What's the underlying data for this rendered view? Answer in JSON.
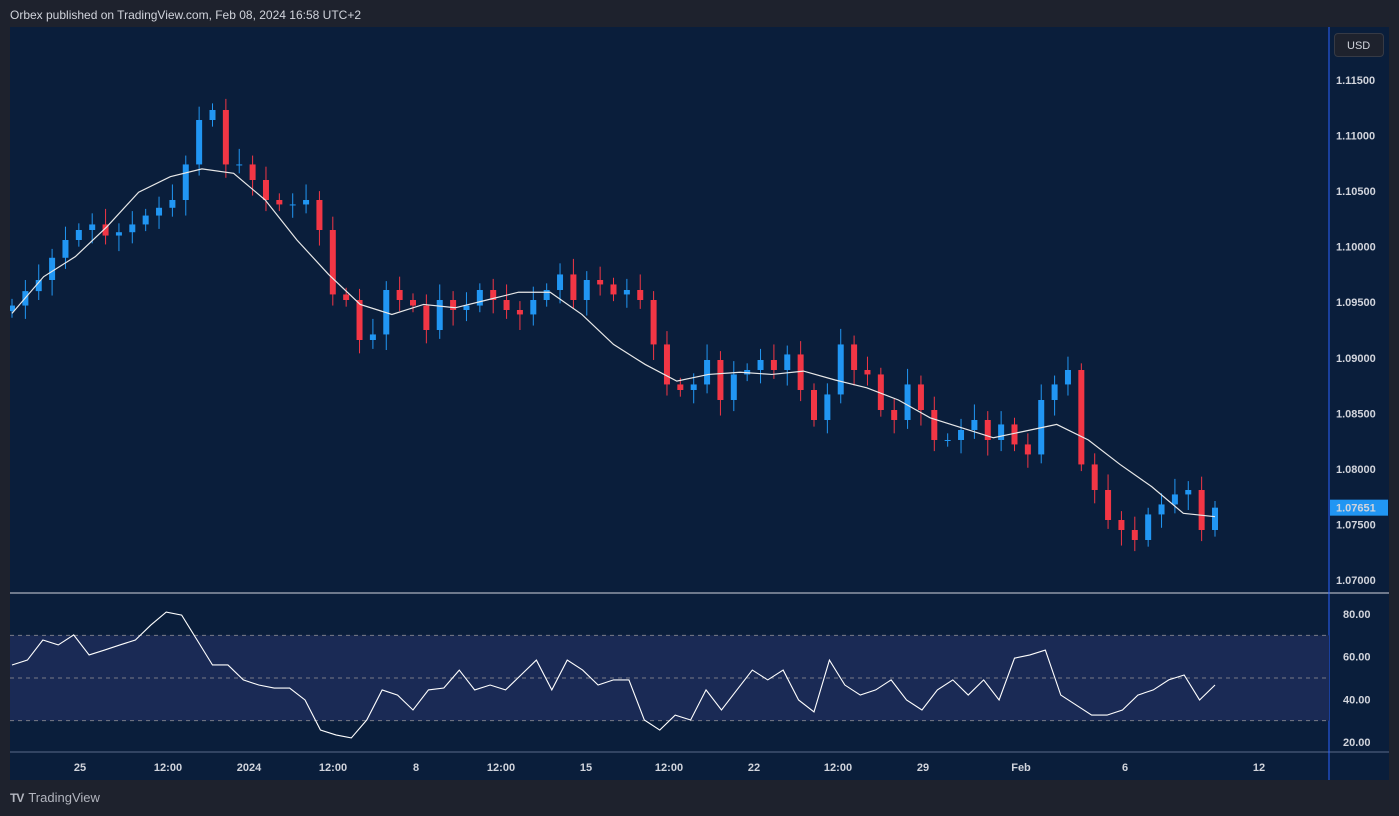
{
  "header": {
    "text": "Orbex published on TradingView.com, Feb 08, 2024 16:58 UTC+2"
  },
  "currency": "USD",
  "branding": {
    "logo_text": "TradingView"
  },
  "colors": {
    "up": "#2196f3",
    "down": "#f23645",
    "ma": "#e8e8e8",
    "rsi": "#ffffff",
    "background": "#0a1e3b",
    "rsi_band": "#1a2a55",
    "last_price": "#2196f3"
  },
  "chart_data": [
    {
      "type": "candlestick",
      "title": "",
      "yaxis": {
        "ticks": [
          "1.11500",
          "1.11000",
          "1.10500",
          "1.10000",
          "1.09500",
          "1.09000",
          "1.08500",
          "1.08000",
          "1.07500",
          "1.07000"
        ],
        "range": [
          1.0685,
          1.1198
        ]
      },
      "xaxis": {
        "ticks": [
          "25",
          "12:00",
          "2024",
          "12:00",
          "8",
          "12:00",
          "15",
          "12:00",
          "22",
          "12:00",
          "29",
          "Feb",
          "6",
          "12"
        ]
      },
      "last_price": "1.07651",
      "closes": [
        1.0947,
        1.096,
        1.097,
        1.099,
        1.1006,
        1.1015,
        1.102,
        1.101,
        1.1013,
        1.102,
        1.1028,
        1.1035,
        1.1042,
        1.1074,
        1.1114,
        1.1123,
        1.1074,
        1.1074,
        1.106,
        1.1042,
        1.1038,
        1.1038,
        1.1042,
        1.1015,
        1.0957,
        1.0952,
        1.0916,
        1.0921,
        1.0961,
        1.0952,
        1.0947,
        1.0925,
        1.0952,
        1.0943,
        1.0947,
        1.0961,
        1.0952,
        1.0943,
        1.0939,
        1.0952,
        1.0961,
        1.0975,
        1.0952,
        1.097,
        1.0966,
        1.0957,
        1.0961,
        1.0952,
        1.0912,
        1.0876,
        1.0871,
        1.0876,
        1.0898,
        1.0862,
        1.0885,
        1.0889,
        1.0898,
        1.0889,
        1.0903,
        1.0871,
        1.0844,
        1.0867,
        1.0912,
        1.0889,
        1.0885,
        1.0853,
        1.0844,
        1.0876,
        1.0853,
        1.0826,
        1.0826,
        1.0835,
        1.0844,
        1.0826,
        1.084,
        1.0822,
        1.0813,
        1.0862,
        1.0876,
        1.0889,
        1.0804,
        1.0781,
        1.0754,
        1.0745,
        1.0736,
        1.0759,
        1.0768,
        1.0777,
        1.0781,
        1.0745,
        1.07651
      ],
      "ma": [
        1.094,
        1.0973,
        1.0991,
        1.1018,
        1.1049,
        1.1063,
        1.107,
        1.1066,
        1.1042,
        1.1006,
        1.0975,
        1.0948,
        1.0939,
        1.0948,
        1.0945,
        1.0952,
        1.0959,
        1.0959,
        1.0939,
        1.0912,
        1.0894,
        1.0879,
        1.0885,
        1.0887,
        1.0885,
        1.0888,
        1.088,
        1.0873,
        1.0862,
        1.0846,
        1.0837,
        1.0828,
        1.0834,
        1.084,
        1.0826,
        1.0804,
        1.0784,
        1.076,
        1.0757
      ],
      "rsi": {
        "ticks": [
          "80.00",
          "60.00",
          "40.00",
          "20.00"
        ],
        "range": [
          15,
          88
        ],
        "overbought": 70,
        "middle": 50,
        "oversold": 30,
        "values": [
          56.1,
          58.4,
          67.8,
          65.5,
          70.2,
          60.8,
          63.1,
          65.5,
          67.8,
          74.8,
          80.9,
          79.5,
          67.8,
          56.1,
          56.1,
          49.1,
          46.7,
          45.3,
          45.3,
          39.7,
          25.6,
          23.3,
          21.9,
          30.3,
          44.4,
          42,
          35,
          44.4,
          45.3,
          53.7,
          44.4,
          46.7,
          44.4,
          51.4,
          58.4,
          44.4,
          58.4,
          53.7,
          46.7,
          49.1,
          49.1,
          30.3,
          25.6,
          32.6,
          30.3,
          44.4,
          35,
          44.4,
          53.7,
          49.1,
          53.7,
          39.7,
          34.1,
          58.4,
          46.7,
          42,
          44.4,
          49.1,
          39.7,
          35,
          44.4,
          49.1,
          42,
          49.1,
          39.7,
          59.3,
          60.8,
          63.1,
          42,
          37.3,
          32.6,
          32.6,
          35,
          42,
          44.4,
          49.1,
          51.4,
          39.7,
          46.7
        ]
      }
    }
  ]
}
